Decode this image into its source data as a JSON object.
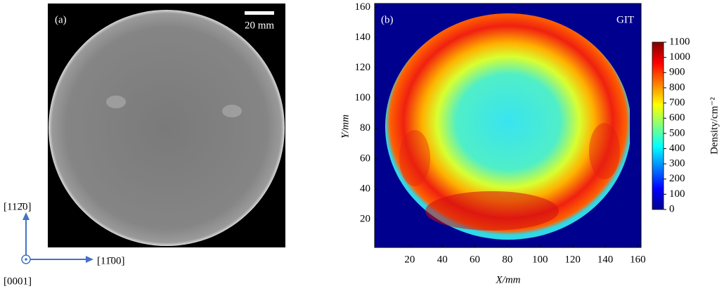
{
  "panel_a": {
    "label": "(a)",
    "scale_bar": "20 mm",
    "orientation": {
      "up": "[112̄0]",
      "right": "[11̄00]",
      "out": "[0001]"
    }
  },
  "chart_data": {
    "type": "heatmap",
    "panel_label": "(b)",
    "annotation": "GIT",
    "xlabel": "X/mm",
    "ylabel": "Y/mm",
    "xlim": [
      -1.5,
      162
    ],
    "ylim": [
      1.5,
      162.5
    ],
    "xticks": [
      20,
      40,
      60,
      80,
      100,
      120,
      140,
      160
    ],
    "yticks": [
      20,
      40,
      60,
      80,
      100,
      120,
      140,
      160
    ],
    "colormap": "jet",
    "colorbar": {
      "label": "Density/cm⁻²",
      "lim": [
        0,
        1100
      ],
      "ticks": [
        0,
        100,
        200,
        300,
        400,
        500,
        600,
        700,
        800,
        900,
        1000,
        1100
      ]
    }
  }
}
